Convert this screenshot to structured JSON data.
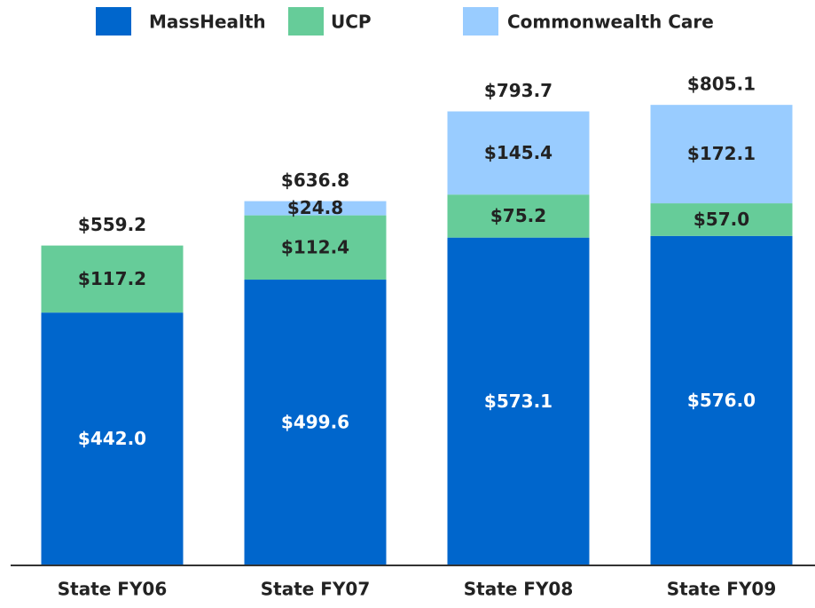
{
  "chart_data": {
    "type": "stacked_bar",
    "categories": [
      "State FY06",
      "State FY07",
      "State FY08",
      "State FY09"
    ],
    "series": [
      {
        "name": "MassHealth",
        "color": "#0066cc",
        "values": [
          442.0,
          499.6,
          573.1,
          576.0
        ],
        "value_labels": [
          "$442.0",
          "$499.6",
          "$573.1",
          "$576.0"
        ]
      },
      {
        "name": "UCP",
        "color": "#66cc99",
        "values": [
          117.2,
          112.4,
          75.2,
          57.0
        ],
        "value_labels": [
          "$117.2",
          "$112.4",
          "$75.2",
          "$57.0"
        ]
      },
      {
        "name": "Commonwealth Care",
        "color": "#99ccff",
        "values": [
          null,
          24.8,
          145.4,
          172.1
        ],
        "value_labels": [
          null,
          "$24.8",
          "$145.4",
          "$172.1"
        ]
      }
    ],
    "totals": [
      559.2,
      636.8,
      793.7,
      805.1
    ],
    "total_labels": [
      "$559.2",
      "$636.8",
      "$793.7",
      "$805.1"
    ],
    "ylim": [
      0,
      900
    ]
  }
}
